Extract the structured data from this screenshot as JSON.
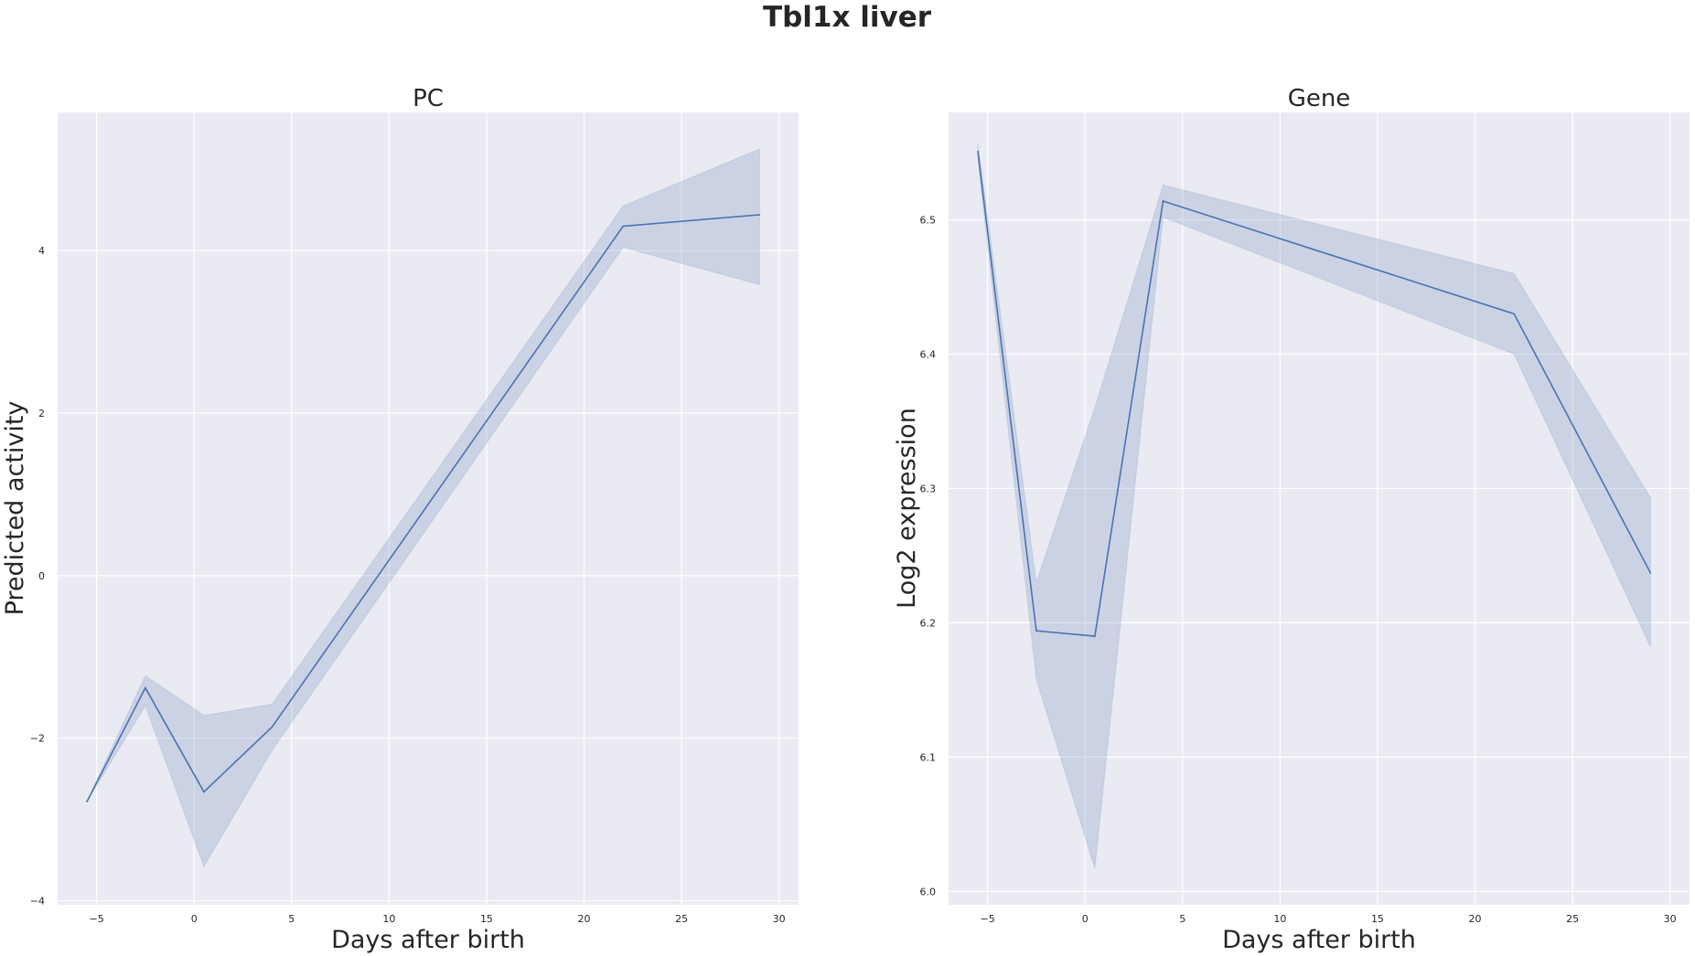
{
  "figure": {
    "title": "Tbl1x liver"
  },
  "chart_data": [
    {
      "type": "line",
      "title": "PC",
      "xlabel": "Days after birth",
      "ylabel": "Predicted activity",
      "xlim": [
        -7,
        31
      ],
      "ylim": [
        -4.05,
        5.7
      ],
      "xticks": [
        -5,
        0,
        5,
        10,
        15,
        20,
        25,
        30
      ],
      "yticks": [
        -4,
        -2,
        0,
        2,
        4
      ],
      "xtick_labels": [
        "−5",
        "0",
        "5",
        "10",
        "15",
        "20",
        "25",
        "30"
      ],
      "ytick_labels": [
        "−4",
        "−2",
        "0",
        "2",
        "4"
      ],
      "grid": true,
      "legend": "none",
      "color": "#4c72b0",
      "x": [
        -5.5,
        -2.5,
        0.5,
        4,
        22,
        29
      ],
      "y": [
        -2.78,
        -1.38,
        -2.66,
        -1.86,
        4.3,
        4.44
      ],
      "ci_lower": [
        -2.78,
        -1.6,
        -3.58,
        -2.15,
        4.04,
        3.58
      ],
      "ci_upper": [
        -2.78,
        -1.23,
        -1.72,
        -1.58,
        4.55,
        5.25
      ]
    },
    {
      "type": "line",
      "title": "Gene",
      "xlabel": "Days after birth",
      "ylabel": "Log2 expression",
      "xlim": [
        -7,
        31
      ],
      "ylim": [
        5.99,
        6.58
      ],
      "xticks": [
        -5,
        0,
        5,
        10,
        15,
        20,
        25,
        30
      ],
      "yticks": [
        6.0,
        6.1,
        6.2,
        6.3,
        6.4,
        6.5
      ],
      "xtick_labels": [
        "−5",
        "0",
        "5",
        "10",
        "15",
        "20",
        "25",
        "30"
      ],
      "ytick_labels": [
        "6.0",
        "6.1",
        "6.2",
        "6.3",
        "6.4",
        "6.5"
      ],
      "grid": true,
      "legend": "none",
      "color": "#4c72b0",
      "x": [
        -5.5,
        -2.5,
        0.5,
        4,
        22,
        29
      ],
      "y": [
        6.551,
        6.194,
        6.19,
        6.514,
        6.43,
        6.237
      ],
      "ci_lower": [
        6.545,
        6.158,
        6.017,
        6.502,
        6.4,
        6.182
      ],
      "ci_upper": [
        6.557,
        6.23,
        6.36,
        6.526,
        6.46,
        6.293
      ]
    }
  ]
}
